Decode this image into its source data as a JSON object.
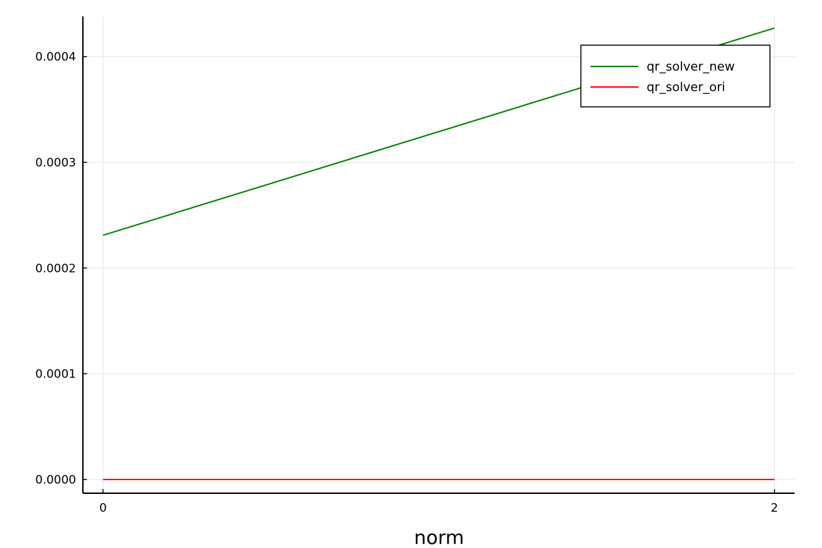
{
  "chart_data": {
    "type": "line",
    "title": "",
    "xlabel": "norm",
    "ylabel": "",
    "xlim": [
      -0.06,
      2.06
    ],
    "ylim": [
      -1.3e-05,
      0.000438
    ],
    "x_ticks": [
      0,
      2
    ],
    "x_tick_labels": [
      "0",
      "2"
    ],
    "y_ticks": [
      0,
      0.0001,
      0.0002,
      0.0003,
      0.0004
    ],
    "y_tick_labels": [
      "0.0000",
      "0.0001",
      "0.0002",
      "0.0003",
      "0.0004"
    ],
    "grid": true,
    "legend_position": "top-right",
    "series": [
      {
        "name": "qr_solver_new",
        "color": "#008000",
        "x": [
          0,
          2
        ],
        "y": [
          0.000231,
          0.000427
        ]
      },
      {
        "name": "qr_solver_ori",
        "color": "#ff0000",
        "x": [
          0,
          2
        ],
        "y": [
          0.0,
          0.0
        ]
      }
    ]
  }
}
